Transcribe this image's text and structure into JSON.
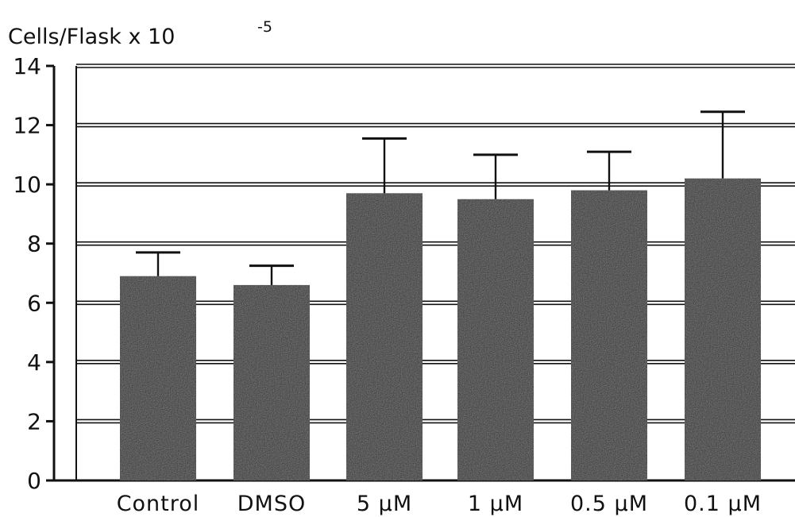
{
  "chart_data": {
    "type": "bar",
    "title": "",
    "ylabel": "Cells/Flask x 10",
    "ylabel_exponent": "-5",
    "xlabel": "",
    "categories": [
      "Control",
      "DMSO",
      "5 µM",
      "1 µM",
      "0.5 µM",
      "0.1 µM"
    ],
    "values": [
      6.9,
      6.6,
      9.7,
      9.5,
      9.8,
      10.2
    ],
    "error_upper": [
      7.7,
      7.25,
      11.55,
      11.0,
      11.1,
      12.45
    ],
    "ylim": [
      0,
      14
    ],
    "yticks": [
      "0",
      "2",
      "4",
      "6",
      "8",
      "10",
      "12",
      "14"
    ],
    "grid": true,
    "bar_color": "#2a2a2a",
    "line_color": "#111111"
  }
}
